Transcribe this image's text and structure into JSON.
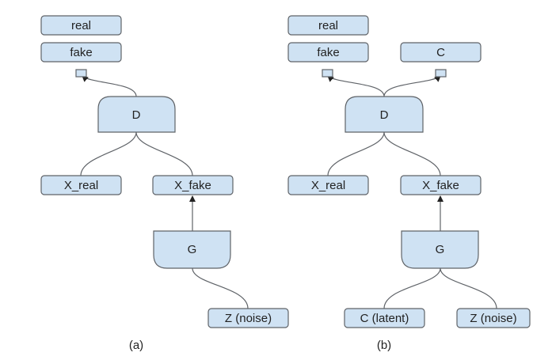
{
  "diagram_a": {
    "caption": "(a)",
    "real": "real",
    "fake": "fake",
    "discriminator": "D",
    "x_real": "X_real",
    "x_fake": "X_fake",
    "generator": "G",
    "noise": "Z (noise)"
  },
  "diagram_b": {
    "caption": "(b)",
    "real": "real",
    "fake": "fake",
    "code": "C",
    "discriminator": "D",
    "x_real": "X_real",
    "x_fake": "X_fake",
    "generator": "G",
    "latent": "C (latent)",
    "noise": "Z (noise)"
  },
  "colors": {
    "node_fill": "#cfe2f3",
    "node_stroke": "#5f6368"
  }
}
